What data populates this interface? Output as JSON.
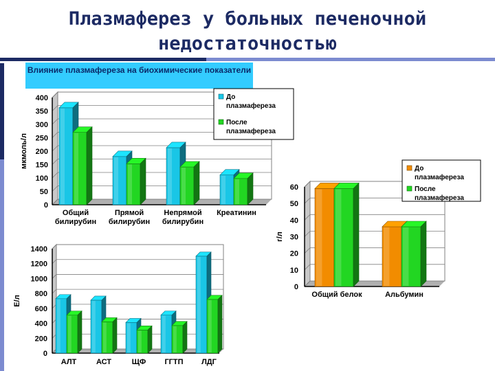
{
  "slide": {
    "title": "Плазмаферез у больных печеночной недостаточностью",
    "panel_caption": "Влияние плазмафереза  на биохимические показатели",
    "colors": {
      "title": "#1c2a63",
      "caption_bg": "#33ccff"
    }
  },
  "chart_data": [
    {
      "id": "bilirubin",
      "type": "bar",
      "ylabel": "мкмоль/л",
      "ylim": [
        0,
        400
      ],
      "yticks": [
        0,
        50,
        100,
        150,
        200,
        250,
        300,
        350,
        400
      ],
      "categories": [
        [
          "Общий",
          "билирубин"
        ],
        [
          "Прямой",
          "билирубин"
        ],
        [
          "Непрямой",
          "билирубин"
        ],
        [
          "Креатинин"
        ]
      ],
      "series": [
        {
          "name": "До плазмафереза",
          "legend_lines": [
            "До",
            "плазмафереза"
          ],
          "color": "#19c6e6",
          "values": [
            362,
            180,
            213,
            111
          ]
        },
        {
          "name": "После плазмафереза",
          "legend_lines": [
            "После",
            "плазмафереза"
          ],
          "color": "#22d622",
          "values": [
            270,
            153,
            141,
            98
          ]
        }
      ],
      "grid": true,
      "legend": "top-right"
    },
    {
      "id": "protein",
      "type": "bar",
      "ylabel": "г/л",
      "ylim": [
        0,
        60
      ],
      "yticks": [
        0,
        10,
        20,
        30,
        40,
        50,
        60
      ],
      "categories": [
        [
          "Общий белок"
        ],
        [
          "Альбумин"
        ]
      ],
      "series": [
        {
          "name": "До плазмафереза",
          "legend_lines": [
            "До",
            "плазмафереза"
          ],
          "color": "#f28c00",
          "values": [
            59,
            36
          ]
        },
        {
          "name": "После плазмафереза",
          "legend_lines": [
            "После",
            "плазмафереза"
          ],
          "color": "#22d622",
          "values": [
            59,
            36
          ]
        }
      ],
      "grid": true,
      "legend": "top-right"
    },
    {
      "id": "enzymes",
      "type": "bar",
      "ylabel": "Е/л",
      "ylim": [
        0,
        1400
      ],
      "yticks": [
        0,
        200,
        400,
        600,
        800,
        1000,
        1200,
        1400
      ],
      "categories": [
        [
          "АЛТ"
        ],
        [
          "АСТ"
        ],
        [
          "ЩФ"
        ],
        [
          "ГГТП"
        ],
        [
          "ЛДГ"
        ]
      ],
      "series": [
        {
          "name": "До плазмафереза",
          "color": "#19c6e6",
          "values": [
            730,
            710,
            410,
            510,
            1300
          ]
        },
        {
          "name": "После плазмафереза",
          "color": "#22d622",
          "values": [
            510,
            420,
            310,
            370,
            720
          ]
        }
      ],
      "grid": true,
      "legend": "none"
    }
  ]
}
